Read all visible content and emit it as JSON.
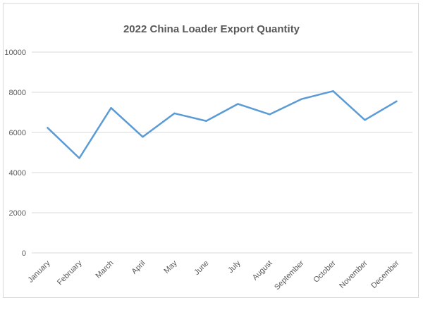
{
  "chart_data": {
    "type": "line",
    "title": "2022 China Loader Export Quantity",
    "xlabel": "",
    "ylabel": "",
    "categories": [
      "January",
      "February",
      "March",
      "April",
      "May",
      "June",
      "July",
      "August",
      "September",
      "October",
      "November",
      "December"
    ],
    "values": [
      6230,
      4720,
      7220,
      5780,
      6950,
      6570,
      7420,
      6900,
      7660,
      8060,
      6620,
      7550
    ],
    "ylim": [
      0,
      10000
    ],
    "yticks": [
      0,
      2000,
      4000,
      6000,
      8000,
      10000
    ],
    "grid": true,
    "legend": "none",
    "line_color": "#5b9bd5"
  }
}
